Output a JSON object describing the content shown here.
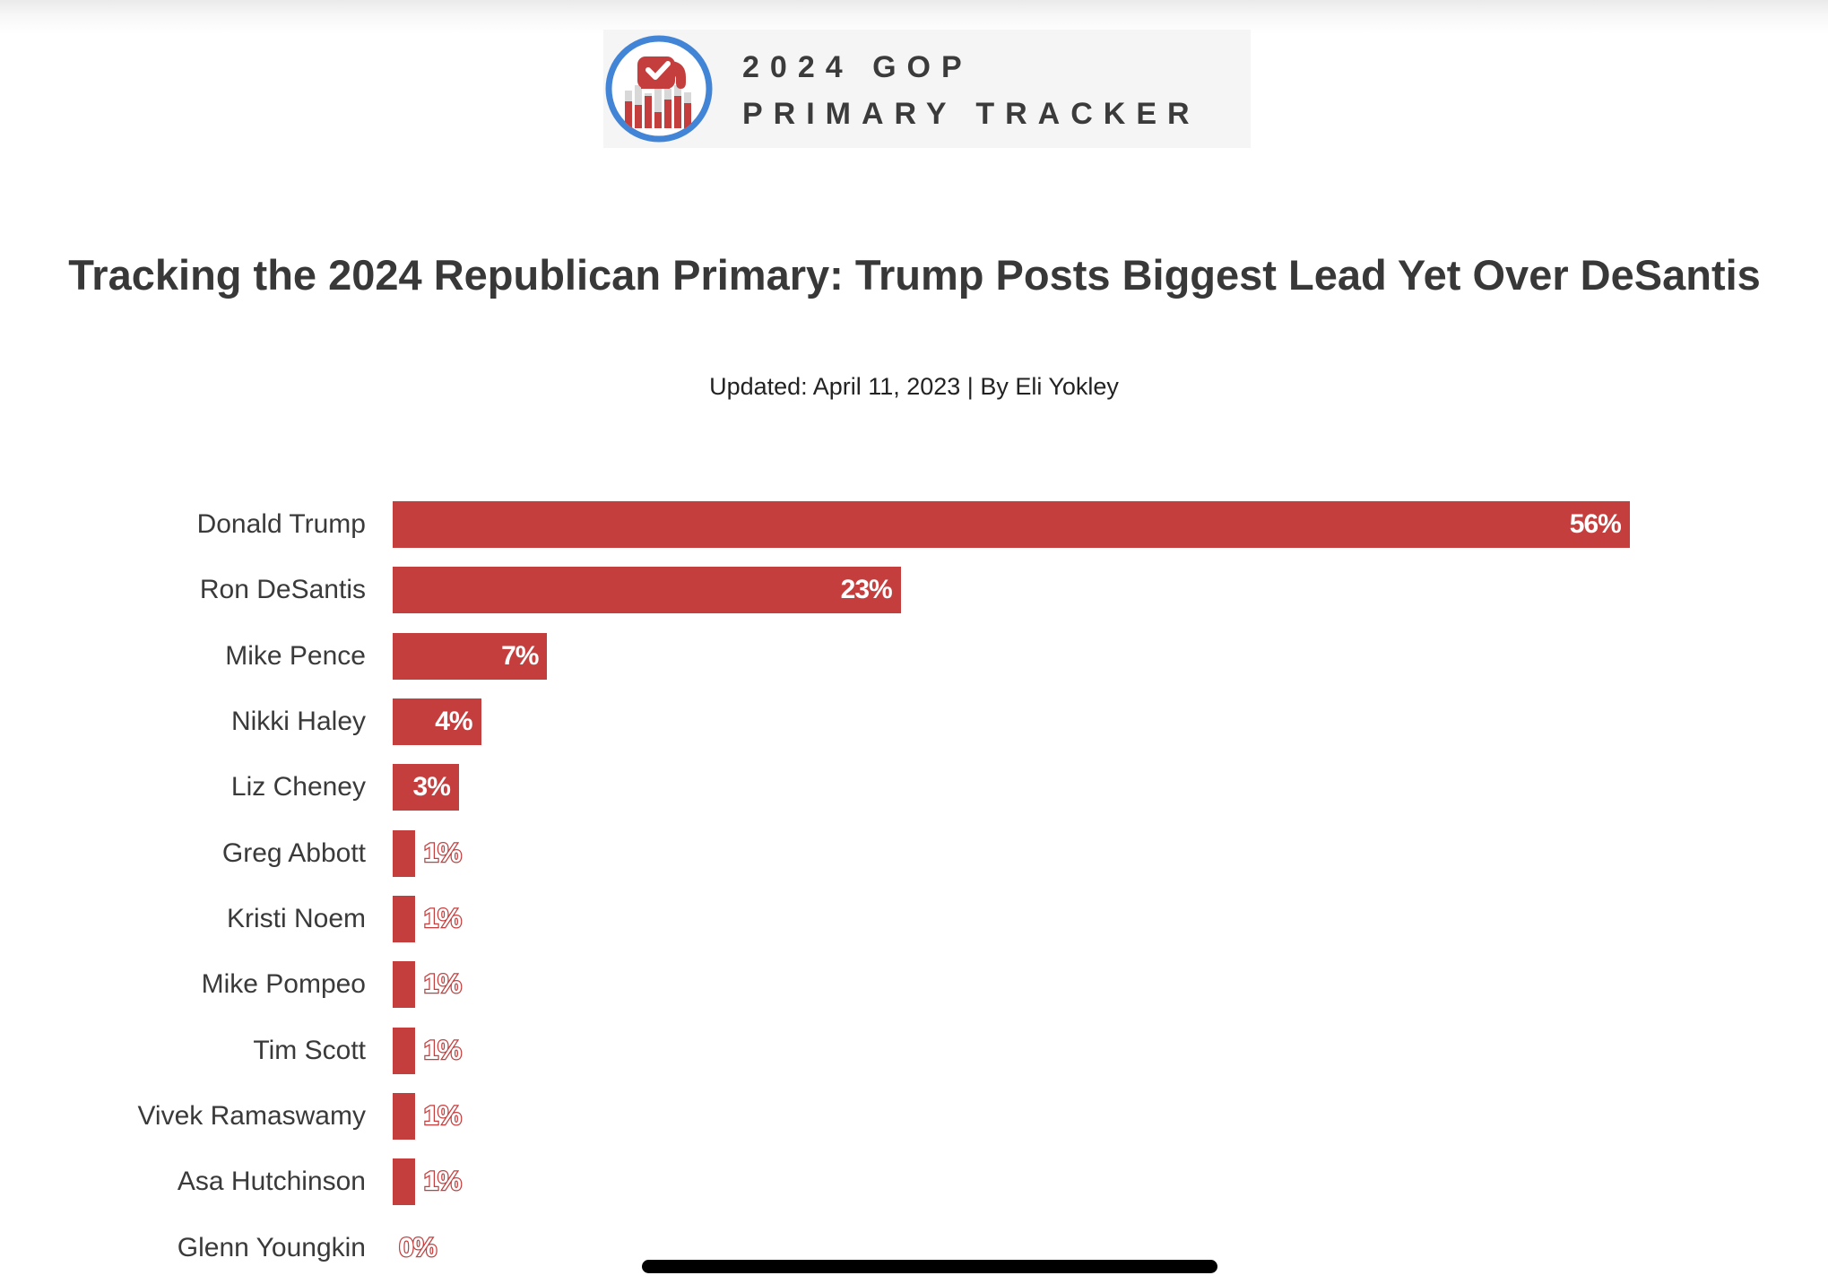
{
  "logo": {
    "line1": "2024 GOP",
    "line2": "PRIMARY TRACKER"
  },
  "header": {
    "title": "Tracking the 2024 Republican Primary: Trump Posts Biggest Lead Yet Over DeSantis",
    "updated": "Updated: April 11, 2023 | By Eli Yokley"
  },
  "colors": {
    "bar_red": "#c53e3e",
    "logo_blue": "#4285d6",
    "logo_gray_bar": "#d8d8d8",
    "logo_background": "#f5f5f6",
    "name_text": "#3a3a3a",
    "title_text": "#383838",
    "scrollbar_black": "#000000"
  },
  "chart_data": {
    "type": "bar",
    "orientation": "horizontal",
    "title": "Tracking the 2024 Republican Primary: Trump Posts Biggest Lead Yet Over DeSantis",
    "categories": [
      "Donald Trump",
      "Ron DeSantis",
      "Mike Pence",
      "Nikki Haley",
      "Liz Cheney",
      "Greg Abbott",
      "Kristi Noem",
      "Mike Pompeo",
      "Tim Scott",
      "Vivek Ramaswamy",
      "Asa Hutchinson",
      "Glenn Youngkin"
    ],
    "values": [
      56,
      23,
      7,
      4,
      3,
      1,
      1,
      1,
      1,
      1,
      1,
      0
    ],
    "labels": [
      "56%",
      "23%",
      "7%",
      "4%",
      "3%",
      "1%",
      "1%",
      "1%",
      "1%",
      "1%",
      "1%",
      "0%"
    ],
    "unit": "%",
    "xlim": [
      0,
      56
    ],
    "grid": false,
    "legend": "none",
    "value_label_position": "inside-end for values >= 3, outside-end for values < 3"
  }
}
